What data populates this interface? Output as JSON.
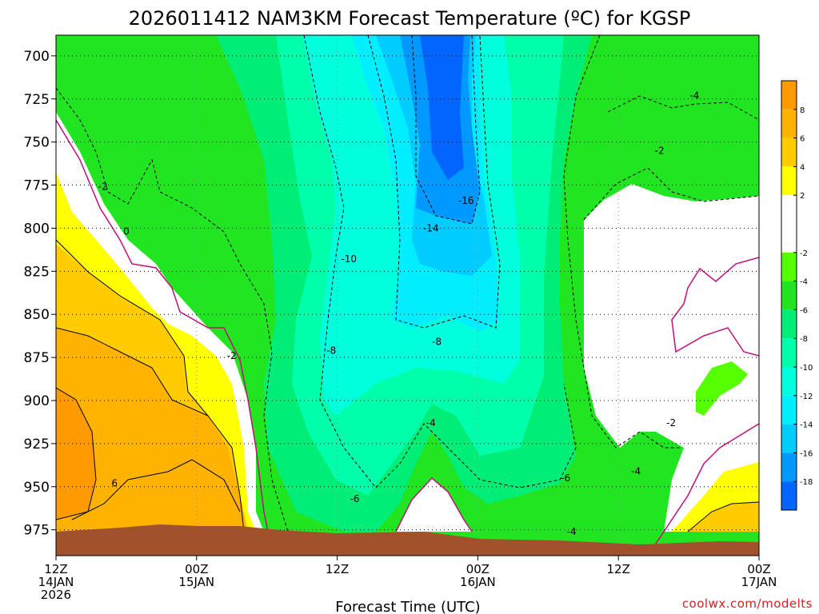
{
  "chart_data": {
    "type": "heatmap",
    "title": "2026011412 NAM3KM Forecast Temperature (ºC) for KGSP",
    "xlabel": "Forecast Time (UTC)",
    "ylabel": "",
    "x_ticks": [
      {
        "label": "12Z",
        "date": "14JAN",
        "year": "2026",
        "hours": 0
      },
      {
        "label": "00Z",
        "date": "15JAN",
        "year": "",
        "hours": 12
      },
      {
        "label": "12Z",
        "date": "",
        "year": "",
        "hours": 24
      },
      {
        "label": "00Z",
        "date": "16JAN",
        "year": "",
        "hours": 36
      },
      {
        "label": "12Z",
        "date": "",
        "year": "",
        "hours": 48
      },
      {
        "label": "00Z",
        "date": "17JAN",
        "year": "",
        "hours": 60
      }
    ],
    "xlim": [
      0,
      60
    ],
    "y_ticks": [
      "700",
      "725",
      "750",
      "775",
      "800",
      "825",
      "850",
      "875",
      "900",
      "925",
      "950",
      "975"
    ],
    "ylim": [
      688,
      990
    ],
    "grid": true,
    "colorbar": {
      "ticks": [
        "8",
        "6",
        "4",
        "2",
        "-2",
        "-4",
        "-6",
        "-8",
        "-10",
        "-12",
        "-14",
        "-16",
        "-18"
      ],
      "bands": [
        {
          "lo": 8,
          "hi": 10,
          "color": "#ff9a00"
        },
        {
          "lo": 6,
          "hi": 8,
          "color": "#ffb300"
        },
        {
          "lo": 4,
          "hi": 6,
          "color": "#ffcc00"
        },
        {
          "lo": 2,
          "hi": 4,
          "color": "#ffff00"
        },
        {
          "lo": -2,
          "hi": 2,
          "color": "#ffffff"
        },
        {
          "lo": -4,
          "hi": -2,
          "color": "#55ff00"
        },
        {
          "lo": -6,
          "hi": -4,
          "color": "#22e522"
        },
        {
          "lo": -8,
          "hi": -6,
          "color": "#00ee77"
        },
        {
          "lo": -10,
          "hi": -8,
          "color": "#00ffaa"
        },
        {
          "lo": -12,
          "hi": -10,
          "color": "#00ffdd"
        },
        {
          "lo": -14,
          "hi": -12,
          "color": "#00eeff"
        },
        {
          "lo": -16,
          "hi": -14,
          "color": "#00ccff"
        },
        {
          "lo": -18,
          "hi": -16,
          "color": "#0099ff"
        },
        {
          "lo": -20,
          "hi": -18,
          "color": "#0066ff"
        }
      ]
    },
    "contour_labels": [
      {
        "text": "-2",
        "hours": 4.0,
        "hpa": 776
      },
      {
        "text": "0",
        "hours": 6.0,
        "hpa": 802
      },
      {
        "text": "-2",
        "hours": 15.0,
        "hpa": 874
      },
      {
        "text": "6",
        "hours": 5.0,
        "hpa": 948
      },
      {
        "text": "-10",
        "hours": 25.0,
        "hpa": 818
      },
      {
        "text": "-8",
        "hours": 23.5,
        "hpa": 871
      },
      {
        "text": "-8",
        "hours": 32.5,
        "hpa": 866
      },
      {
        "text": "-14",
        "hours": 32.0,
        "hpa": 800
      },
      {
        "text": "-16",
        "hours": 35.0,
        "hpa": 784
      },
      {
        "text": "-4",
        "hours": 32.0,
        "hpa": 913
      },
      {
        "text": "-6",
        "hours": 25.5,
        "hpa": 957
      },
      {
        "text": "-6",
        "hours": 43.5,
        "hpa": 945
      },
      {
        "text": "-4",
        "hours": 44.0,
        "hpa": 976
      },
      {
        "text": "-4",
        "hours": 49.5,
        "hpa": 941
      },
      {
        "text": "-2",
        "hours": 52.5,
        "hpa": 913
      },
      {
        "text": "-2",
        "hours": 51.5,
        "hpa": 755
      },
      {
        "text": "-4",
        "hours": 54.5,
        "hpa": 723
      }
    ]
  },
  "credit": "coolwx.com/modelts",
  "colors": {
    "ground": "#a0522d",
    "contour_zero": "#c0107a"
  }
}
